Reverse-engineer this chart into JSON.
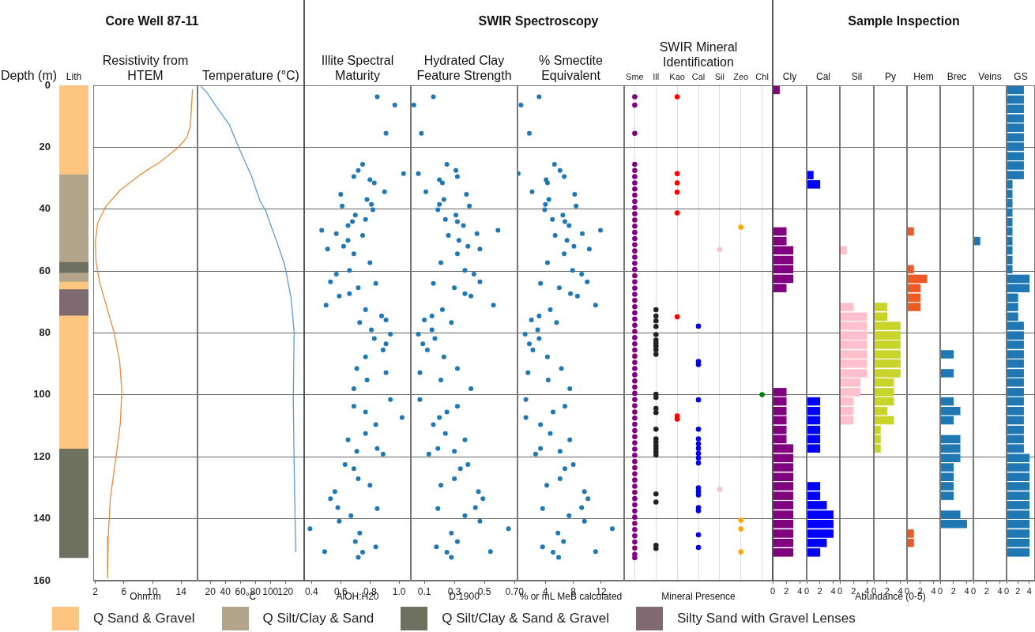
{
  "chart_data": [
    {
      "type": "bar",
      "stacked": true,
      "title": "Lith",
      "ylabel": "Depth (m)",
      "annotations": [
        "Core Well 87-11"
      ],
      "categories": [
        null
      ],
      "ylim": [
        160,
        0
      ],
      "yticks": [
        0,
        20,
        40,
        60,
        80,
        100,
        120,
        140,
        160
      ],
      "tick_labels": "y",
      "legend": "bottom",
      "series": [
        {
          "name": "Q Sand & Gravel",
          "color": "#fdc57f",
          "values": [
            28.7
          ]
        },
        {
          "name": "Q Silt/Clay & Sand",
          "color": "#b2a58c",
          "values": [
            28.3
          ]
        },
        {
          "name": "Q Silt/Clay & Sand & Gravel",
          "color": "#6e7060",
          "values": [
            3.5
          ]
        },
        {
          "color": "#b2a58c",
          "values": [
            2.9
          ]
        },
        {
          "color": "#fdc57f",
          "values": [
            2.4
          ]
        },
        {
          "name": "Silty Sand with Gravel Lenses",
          "color": "#7f6a72",
          "values": [
            8.5
          ]
        },
        {
          "color": "#fdc57f",
          "values": [
            43
          ]
        },
        {
          "color": "#6e7060",
          "values": [
            35.3
          ]
        }
      ]
    },
    {
      "type": "line",
      "title": "Resistivity from HTEM",
      "xlabel": "Ohm.m",
      "xlim": [
        1.7,
        16.3
      ],
      "xticks": [
        2,
        6,
        10,
        14
      ],
      "ylim": [
        160,
        0
      ],
      "yticks": [
        0,
        20,
        40,
        60,
        80,
        100,
        120,
        140,
        160
      ],
      "tick_labels": "x",
      "grid": "y",
      "marker": "none",
      "line_style": "solid",
      "series": [
        {
          "color": "#ed8b3a",
          "x": [
            15.6,
            15.3,
            14.8,
            13.6,
            11.2,
            8.2,
            5.5,
            3.5,
            2.3,
            2.0,
            2.1,
            2.6,
            4.6,
            5.4,
            5.7,
            5.5,
            4.9,
            4.1,
            3.8,
            3.7
          ],
          "values": [
            1.3,
            13.2,
            16.8,
            20.1,
            24.5,
            29,
            33.8,
            39,
            44.6,
            50.8,
            57,
            63.7,
            79.7,
            89,
            98.8,
            109.1,
            119.9,
            133.3,
            145.7,
            159.1
          ]
        }
      ]
    },
    {
      "type": "line",
      "title": "Temperature (°C)",
      "xlabel": "°C",
      "xlim": [
        3,
        145
      ],
      "xticks": [
        20,
        40,
        60,
        80,
        100,
        120
      ],
      "ylim": [
        160,
        0
      ],
      "yticks": [
        0,
        20,
        40,
        60,
        80,
        100,
        120,
        140,
        160
      ],
      "tick_labels": "x",
      "grid": "y",
      "marker": "none",
      "line_style": "solid",
      "series": [
        {
          "color": "#5b9bd5",
          "x": [
            7.4,
            15.8,
            24.2,
            45.3,
            57.9,
            74.7,
            86.3,
            93.7,
            110.5,
            119,
            127.4,
            131.6,
            130.5,
            131.6,
            133.7
          ],
          "values": [
            0.3,
            2.4,
            5.5,
            12.7,
            20.1,
            29.2,
            37.4,
            40.5,
            51.9,
            58,
            68.4,
            79.7,
            101.3,
            122,
            150.8
          ]
        }
      ]
    },
    {
      "type": "scatter",
      "title": "Illite Spectral Maturity",
      "xlabel": "AlOH:H20",
      "annotations": [
        "SWIR Spectroscopy"
      ],
      "xlim": [
        0.35,
        1.08
      ],
      "xticks": [
        0.4,
        0.6,
        0.8,
        {
          "value": 1,
          "label": "1.0"
        }
      ],
      "ylim": [
        160,
        0
      ],
      "yticks": [
        0,
        20,
        40,
        60,
        80,
        100,
        120,
        140,
        160
      ],
      "tick_labels": "x",
      "grid": "y",
      "marker": "circle",
      "series": [
        {
          "color": "#1f77b4",
          "x": [
            0.85,
            0.97,
            0.91,
            0.75,
            0.72,
            1.03,
            0.69,
            0.8,
            0.83,
            0.9,
            0.6,
            0.78,
            0.81,
            0.61,
            0.82,
            0.7,
            0.77,
            0.68,
            0.65,
            0.47,
            0.57,
            0.75,
            0.65,
            0.62,
            0.51,
            0.69,
            0.8,
            0.66,
            0.57,
            0.53,
            0.84,
            0.72,
            0.66,
            0.59,
            0.5,
            0.77,
            0.88,
            0.91,
            0.73,
            0.81,
            0.94,
            0.83,
            0.91,
            0.89,
            0.77,
            0.71,
            0.91,
            0.78,
            0.69,
            0.94,
            0.69,
            0.77,
            1.02,
            0.84,
            0.77,
            0.65,
            0.85,
            0.71,
            0.89,
            0.63,
            0.69,
            0.72,
            0.8,
            0.56,
            0.53,
            0.58,
            0.85,
            0.67,
            0.59,
            0.39,
            0.73,
            0.7,
            0.84,
            0.49,
            0.75,
            0.72
          ],
          "values": [
            3.7,
            6.4,
            15.5,
            25.5,
            27.5,
            28.5,
            29.5,
            30.5,
            31.5,
            34.4,
            35.2,
            36.9,
            38.5,
            39.0,
            40.2,
            41.9,
            43.3,
            44.0,
            45.3,
            46.8,
            47.9,
            48.5,
            50.1,
            52.0,
            52.9,
            54.4,
            57.3,
            59.8,
            61.0,
            63.5,
            64.0,
            65.4,
            67.3,
            68.1,
            71.0,
            72.5,
            74.5,
            75.8,
            76.6,
            79.0,
            80.4,
            81.8,
            83.5,
            85.5,
            87.7,
            91.5,
            92.8,
            95.2,
            98.0,
            101.5,
            103.7,
            105.5,
            107.3,
            109.6,
            112.5,
            114.5,
            117.3,
            118.2,
            119.1,
            122.5,
            123.8,
            127.1,
            129.2,
            131.2,
            133.5,
            136.4,
            136.7,
            139.0,
            140.8,
            143.2,
            144.6,
            147.4,
            149.1,
            150.6,
            150.8,
            152.5
          ]
        }
      ]
    },
    {
      "type": "scatter",
      "title": "Hydrated Clay Feature Strength",
      "xlabel": "D:1900",
      "xlim": [
        0.01,
        0.72
      ],
      "xticks": [
        0.1,
        0.3,
        0.5,
        {
          "value": 0.7,
          "label": "0.70"
        }
      ],
      "ylim": [
        160,
        0
      ],
      "yticks": [
        0,
        20,
        40,
        60,
        80,
        100,
        120,
        140,
        160
      ],
      "tick_labels": "x",
      "grid": "y",
      "marker": "circle",
      "series": [
        {
          "color": "#1f77b4",
          "x": [
            0.16,
            0.03,
            0.08,
            0.25,
            0.31,
            0.06,
            0.32,
            0.2,
            0.22,
            0.11,
            0.38,
            0.23,
            0.2,
            0.4,
            0.19,
            0.31,
            0.24,
            0.32,
            0.36,
            0.59,
            0.45,
            0.26,
            0.33,
            0.39,
            0.47,
            0.32,
            0.21,
            0.37,
            0.43,
            0.47,
            0.16,
            0.3,
            0.37,
            0.41,
            0.56,
            0.22,
            0.15,
            0.1,
            0.28,
            0.15,
            0.06,
            0.17,
            0.09,
            0.12,
            0.23,
            0.32,
            0.07,
            0.21,
            0.41,
            0.07,
            0.32,
            0.25,
            0.2,
            0.16,
            0.24,
            0.37,
            0.19,
            0.3,
            0.13,
            0.39,
            0.34,
            0.3,
            0.21,
            0.46,
            0.49,
            0.44,
            0.19,
            0.37,
            0.47,
            0.66,
            0.28,
            0.32,
            0.18,
            0.54,
            0.25,
            0.28
          ],
          "values": [
            3.7,
            6.4,
            15.5,
            25.5,
            27.5,
            28.5,
            29.5,
            30.5,
            31.5,
            34.4,
            35.2,
            36.9,
            38.5,
            39.0,
            40.2,
            41.9,
            43.3,
            44.0,
            45.3,
            46.8,
            47.9,
            48.5,
            50.1,
            52.0,
            52.9,
            54.4,
            57.3,
            59.8,
            61.0,
            63.5,
            64.0,
            65.4,
            67.3,
            68.1,
            71.0,
            72.5,
            74.5,
            75.8,
            76.6,
            79.0,
            80.4,
            81.8,
            83.5,
            85.5,
            87.7,
            91.5,
            92.8,
            95.2,
            98.0,
            101.5,
            103.7,
            105.5,
            107.3,
            109.6,
            112.5,
            114.5,
            117.3,
            118.2,
            119.1,
            122.5,
            123.8,
            127.1,
            129.2,
            131.2,
            133.5,
            136.4,
            136.7,
            139.0,
            140.8,
            143.2,
            144.6,
            147.4,
            149.1,
            150.6,
            150.8,
            152.5
          ]
        }
      ]
    },
    {
      "type": "scatter",
      "title": "% Smectite Equivalent",
      "xlabel": "% or mL MeB calculated",
      "xlim": [
        0,
        15.3
      ],
      "xticks": [
        4,
        8,
        12
      ],
      "ylim": [
        160,
        0
      ],
      "yticks": [
        0,
        20,
        40,
        60,
        80,
        100,
        120,
        140,
        160
      ],
      "tick_labels": "x",
      "grid": "y",
      "marker": "circle",
      "series": [
        {
          "color": "#1f77b4",
          "x": [
            3.1,
            0.5,
            1.7,
            5.3,
            6.1,
            0.1,
            6.7,
            4.1,
            4.3,
            2.1,
            8.2,
            4.5,
            4.0,
            8.4,
            3.9,
            6.5,
            5.0,
            6.8,
            7.4,
            11.9,
            9.3,
            5.4,
            7.1,
            8.1,
            10.3,
            6.7,
            4.3,
            7.9,
            9.2,
            10.0,
            3.3,
            6.0,
            7.6,
            8.6,
            11.2,
            4.7,
            3.1,
            2.0,
            5.6,
            2.9,
            1.1,
            3.1,
            1.7,
            2.2,
            4.3,
            6.3,
            1.5,
            4.4,
            7.5,
            1.2,
            6.8,
            5.1,
            1.2,
            3.3,
            4.7,
            7.5,
            3.3,
            6.1,
            2.6,
            8.0,
            6.8,
            6.1,
            4.2,
            9.6,
            10.1,
            9.2,
            3.6,
            7.4,
            9.6,
            13.6,
            5.8,
            6.6,
            3.6,
            11.2,
            5.1,
            5.9
          ],
          "values": [
            3.7,
            6.4,
            15.5,
            25.5,
            27.5,
            28.5,
            29.5,
            30.5,
            31.5,
            34.4,
            35.2,
            36.9,
            38.5,
            39.0,
            40.2,
            41.9,
            43.3,
            44.0,
            45.3,
            46.8,
            47.9,
            48.5,
            50.1,
            52.0,
            52.9,
            54.4,
            57.3,
            59.8,
            61.0,
            63.5,
            64.0,
            65.4,
            67.3,
            68.1,
            71.0,
            72.5,
            74.5,
            75.8,
            76.6,
            79.0,
            80.4,
            81.8,
            83.5,
            85.5,
            87.7,
            91.5,
            92.8,
            95.2,
            98.0,
            101.5,
            103.7,
            105.5,
            107.3,
            109.6,
            112.5,
            114.5,
            117.3,
            118.2,
            119.1,
            122.5,
            123.8,
            127.1,
            129.2,
            131.2,
            133.5,
            136.4,
            136.7,
            139.0,
            140.8,
            143.2,
            144.6,
            147.4,
            149.1,
            150.6,
            150.8,
            152.5
          ]
        }
      ]
    },
    {
      "type": "scatter",
      "title": "SWIR Mineral Identification",
      "xlabel": "Mineral Presence",
      "categories": [
        "Sme",
        "Ill",
        "Kao",
        "Cal",
        "Sil",
        "Zeo",
        "Chl"
      ],
      "ylim": [
        160,
        0
      ],
      "yticks": [
        0,
        20,
        40,
        60,
        80,
        100,
        120,
        140,
        160
      ],
      "tick_labels": "x",
      "grid": true,
      "marker": "circle",
      "series": [
        {
          "color": "#800080",
          "x": [
            "Sme",
            "Sme",
            "Sme",
            "Sme",
            "Sme",
            "Sme",
            "Sme",
            "Sme",
            "Sme",
            "Sme",
            "Sme",
            "Sme",
            "Sme",
            "Sme",
            "Sme",
            "Sme",
            "Sme",
            "Sme",
            "Sme",
            "Sme",
            "Sme",
            "Sme",
            "Sme",
            "Sme",
            "Sme",
            "Sme",
            "Sme",
            "Sme",
            "Sme",
            "Sme",
            "Sme",
            "Sme",
            "Sme",
            "Sme",
            "Sme",
            "Sme",
            "Sme",
            "Sme",
            "Sme",
            "Sme",
            "Sme",
            "Sme",
            "Sme",
            "Sme",
            "Sme",
            "Sme",
            "Sme",
            "Sme",
            "Sme",
            "Sme",
            "Sme",
            "Sme",
            "Sme",
            "Sme",
            "Sme",
            "Sme",
            "Sme",
            "Sme",
            "Sme",
            "Sme",
            "Sme",
            "Sme",
            "Sme",
            "Sme",
            "Sme",
            "Sme",
            "Sme",
            "Sme"
          ],
          "values": [
            3.7,
            6.4,
            15.5,
            25.5,
            27.5,
            29.5,
            31.5,
            33.5,
            35.5,
            37.5,
            39.5,
            41.5,
            43.5,
            45.5,
            47.5,
            49.5,
            51.5,
            53.5,
            55.5,
            57.5,
            59.5,
            61.5,
            63.5,
            65.5,
            67.5,
            69.5,
            71.5,
            73.5,
            75.5,
            77.5,
            79.5,
            81.5,
            83.5,
            85.5,
            87.5,
            89.5,
            91.5,
            93.5,
            95.5,
            97.5,
            99.5,
            101.5,
            103.5,
            105.5,
            107.5,
            109.5,
            111.5,
            113.5,
            115.5,
            117.5,
            119.5,
            121.5,
            123.5,
            125.5,
            127.5,
            129.5,
            131.5,
            133.5,
            135.5,
            137.5,
            139.5,
            141.5,
            143.5,
            145.5,
            147.5,
            149.5,
            151.5,
            152.6
          ]
        },
        {
          "color": "#222222",
          "x": [
            "Ill",
            "Ill",
            "Ill",
            "Ill",
            "Ill",
            "Ill",
            "Ill",
            "Ill",
            "Ill",
            "Ill",
            "Ill",
            "Ill",
            "Ill",
            "Ill",
            "Ill",
            "Ill",
            "Ill",
            "Ill",
            "Ill",
            "Ill",
            "Ill",
            "Ill",
            "Ill",
            "Ill",
            "Ill"
          ],
          "values": [
            72.5,
            74.5,
            76.1,
            77.9,
            80.5,
            82.3,
            83.3,
            84.3,
            85.4,
            86.9,
            99.8,
            100.8,
            104.4,
            105.7,
            111.1,
            114.2,
            115.3,
            116.3,
            117.3,
            118.4,
            119.4,
            132.0,
            134.6,
            148.6,
            149.6
          ]
        },
        {
          "color": "#ff0000",
          "x": [
            "Kao",
            "Kao",
            "Kao",
            "Kao",
            "Kao",
            "Kao",
            "Kao",
            "Kao"
          ],
          "values": [
            3.7,
            28.5,
            31.5,
            34.5,
            41.2,
            74.8,
            106.8,
            107.8
          ]
        },
        {
          "color": "#0000ff",
          "x": [
            "Cal",
            "Cal",
            "Cal",
            "Cal",
            "Cal",
            "Cal",
            "Cal",
            "Cal",
            "Cal",
            "Cal",
            "Cal",
            "Cal",
            "Cal",
            "Cal",
            "Cal",
            "Cal",
            "Cal",
            "Cal"
          ],
          "values": [
            77.8,
            89.2,
            90.2,
            101.6,
            111.1,
            114.2,
            115.8,
            117.3,
            118.9,
            120.4,
            122.0,
            130.0,
            131.2,
            132.3,
            136.4,
            137.4,
            145.2,
            149.3
          ]
        },
        {
          "color": "#ffc0cb",
          "x": [
            "Sil",
            "Sil"
          ],
          "values": [
            53.0,
            130.5
          ]
        },
        {
          "color": "#ffa500",
          "x": [
            "Zeo",
            "Zeo",
            "Zeo",
            "Zeo"
          ],
          "values": [
            45.8,
            140.5,
            143.3,
            150.7
          ]
        },
        {
          "color": "#008000",
          "x": [
            "Chl"
          ],
          "values": [
            99.9
          ]
        }
      ]
    },
    {
      "type": "bar",
      "orientation": "horizontal",
      "title": "Cly",
      "annotations": [
        "Sample Inspection"
      ],
      "xlim": [
        0,
        5
      ],
      "xticks": [
        0,
        2,
        4
      ],
      "ylim": [
        160,
        0
      ],
      "yticks": [
        0,
        20,
        40,
        60,
        80,
        100,
        120,
        140,
        160
      ],
      "tick_labels": "x",
      "grid": "y",
      "series": [
        {
          "color": "#800080",
          "x": [
            1.5,
            47.2,
            50.3,
            53.3,
            56.4,
            59.4,
            62.5,
            65.5,
            99.1,
            102.1,
            105.2,
            108.2,
            111.3,
            114.3,
            117.3,
            120.4,
            123.4,
            126.5,
            129.5,
            132.6,
            135.6,
            138.7,
            141.7,
            144.8,
            147.8,
            150.9
          ],
          "values": [
            1,
            2,
            2,
            3,
            3,
            3,
            3,
            2,
            2,
            2,
            2,
            2,
            2,
            2,
            3,
            3,
            3,
            3,
            3,
            3,
            3,
            3,
            3,
            3,
            3,
            3
          ]
        }
      ]
    },
    {
      "type": "bar",
      "orientation": "horizontal",
      "title": "Cal",
      "xlim": [
        0,
        5
      ],
      "xticks": [
        0,
        2,
        4
      ],
      "ylim": [
        160,
        0
      ],
      "yticks": [
        0,
        20,
        40,
        60,
        80,
        100,
        120,
        140,
        160
      ],
      "tick_labels": "x",
      "grid": "y",
      "series": [
        {
          "color": "#0000ff",
          "x": [
            29.0,
            32.0,
            102.1,
            105.2,
            108.2,
            111.3,
            114.3,
            117.3,
            129.5,
            132.6,
            135.6,
            138.7,
            141.7,
            144.8,
            147.8,
            150.9
          ],
          "values": [
            1,
            2,
            2,
            2,
            2,
            2,
            2,
            2,
            2,
            2,
            3,
            4,
            4,
            4,
            3,
            2
          ]
        }
      ]
    },
    {
      "type": "bar",
      "orientation": "horizontal",
      "title": "Sil",
      "xlim": [
        0,
        5
      ],
      "xticks": [
        0,
        2,
        4
      ],
      "ylim": [
        160,
        0
      ],
      "yticks": [
        0,
        20,
        40,
        60,
        80,
        100,
        120,
        140,
        160
      ],
      "tick_labels": "x",
      "grid": "y",
      "series": [
        {
          "color": "#ffc0cb",
          "x": [
            53.3,
            71.6,
            74.7,
            77.7,
            80.8,
            83.8,
            86.9,
            89.9,
            93.0,
            96.0,
            99.1,
            102.1,
            105.2,
            108.2
          ],
          "values": [
            1,
            2,
            4,
            4,
            4,
            4,
            4,
            4,
            4,
            3,
            3,
            2,
            2,
            2
          ]
        }
      ]
    },
    {
      "type": "bar",
      "orientation": "horizontal",
      "title": "Py",
      "xlabel": "Abundance (0-5)",
      "xlim": [
        0,
        5
      ],
      "xticks": [
        0,
        2,
        4
      ],
      "ylim": [
        160,
        0
      ],
      "yticks": [
        0,
        20,
        40,
        60,
        80,
        100,
        120,
        140,
        160
      ],
      "tick_labels": "x",
      "grid": "y",
      "series": [
        {
          "color": "#c8d42a",
          "x": [
            71.6,
            74.7,
            77.7,
            80.8,
            83.8,
            86.9,
            89.9,
            93.0,
            96.0,
            99.1,
            102.1,
            105.2,
            108.2,
            111.3,
            114.3,
            117.3
          ],
          "values": [
            2,
            2,
            4,
            4,
            4,
            4,
            4,
            4,
            3,
            3,
            3,
            2,
            3,
            1,
            1,
            1
          ]
        }
      ]
    },
    {
      "type": "bar",
      "orientation": "horizontal",
      "title": "Hem",
      "xlim": [
        0,
        5
      ],
      "xticks": [
        0,
        2,
        4
      ],
      "ylim": [
        160,
        0
      ],
      "yticks": [
        0,
        20,
        40,
        60,
        80,
        100,
        120,
        140,
        160
      ],
      "tick_labels": "x",
      "grid": "y",
      "series": [
        {
          "color": "#f05a22",
          "x": [
            47.2,
            59.4,
            62.5,
            65.5,
            68.6,
            71.6,
            144.8,
            147.8
          ],
          "values": [
            1,
            1,
            3,
            2,
            2,
            2,
            1,
            1
          ]
        }
      ]
    },
    {
      "type": "bar",
      "orientation": "horizontal",
      "title": "Brec",
      "xlim": [
        0,
        5
      ],
      "xticks": [
        0,
        2,
        4
      ],
      "ylim": [
        160,
        0
      ],
      "yticks": [
        0,
        20,
        40,
        60,
        80,
        100,
        120,
        140,
        160
      ],
      "tick_labels": "x",
      "grid": "y",
      "series": [
        {
          "color": "#1f77b4",
          "x": [
            86.9,
            93.0,
            102.1,
            105.2,
            108.2,
            114.3,
            117.3,
            120.4,
            123.4,
            126.5,
            129.5,
            132.6,
            138.7,
            141.7
          ],
          "values": [
            2,
            2,
            2,
            3,
            2,
            3,
            3,
            3,
            2,
            2,
            2,
            2,
            3,
            4
          ]
        }
      ]
    },
    {
      "type": "bar",
      "orientation": "horizontal",
      "title": "Veins",
      "xlim": [
        0,
        5
      ],
      "xticks": [
        0,
        2,
        4
      ],
      "ylim": [
        160,
        0
      ],
      "yticks": [
        0,
        20,
        40,
        60,
        80,
        100,
        120,
        140,
        160
      ],
      "tick_labels": "x",
      "grid": "y",
      "series": [
        {
          "color": "#1f77b4",
          "x": [
            50.3
          ],
          "values": [
            1
          ]
        }
      ]
    },
    {
      "type": "bar",
      "orientation": "horizontal",
      "title": "GS",
      "xlim": [
        0,
        5
      ],
      "xticks": [
        0,
        2,
        4
      ],
      "ylim": [
        160,
        0
      ],
      "yticks": [
        0,
        20,
        40,
        60,
        80,
        100,
        120,
        140,
        160
      ],
      "tick_labels": "x",
      "grid": "y",
      "series": [
        {
          "color": "#1f77b4",
          "x": [
            1.5,
            4.6,
            7.6,
            10.7,
            13.7,
            16.8,
            19.8,
            22.9,
            25.9,
            29.0,
            32.0,
            35.1,
            38.1,
            41.1,
            44.2,
            47.2,
            50.3,
            53.3,
            56.4,
            59.4,
            62.5,
            65.5,
            68.6,
            71.6,
            74.7,
            77.7,
            80.8,
            83.8,
            86.9,
            89.9,
            93.0,
            96.0,
            99.1,
            102.1,
            105.2,
            108.2,
            111.3,
            114.3,
            117.3,
            120.4,
            123.4,
            126.5,
            129.5,
            132.6,
            135.6,
            138.7,
            141.7,
            144.8,
            147.8,
            150.9
          ],
          "values": [
            3,
            3,
            3,
            3,
            3,
            3,
            3,
            3,
            3,
            3,
            1,
            1,
            1,
            1,
            1,
            1,
            1,
            1,
            1,
            1,
            4,
            4,
            2,
            2,
            2,
            3,
            3,
            3,
            3,
            3,
            3,
            3,
            3,
            3,
            3,
            3,
            3,
            3,
            3,
            4,
            4,
            4,
            4,
            4,
            4,
            4,
            4,
            4,
            4,
            4
          ]
        }
      ]
    }
  ]
}
